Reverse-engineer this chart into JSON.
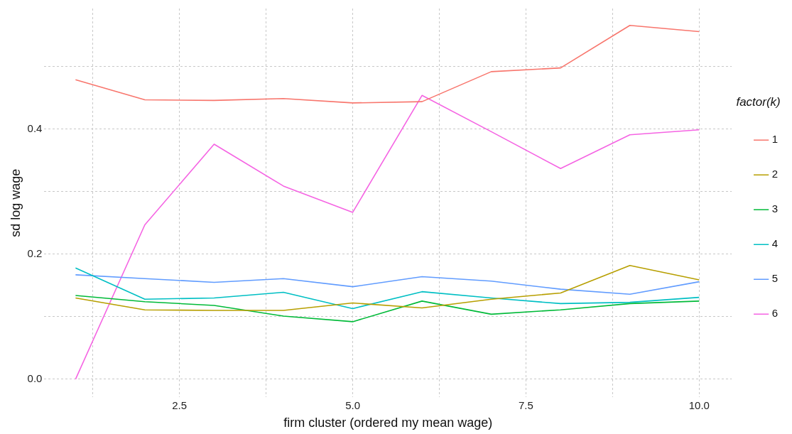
{
  "chart_data": {
    "type": "line",
    "xlabel": "firm cluster (ordered my mean wage)",
    "ylabel": "sd log wage",
    "legend_title": "factor(k)",
    "x": [
      1,
      2,
      3,
      4,
      5,
      6,
      7,
      8,
      9,
      10
    ],
    "series": [
      {
        "name": "1",
        "color": "#f8766d",
        "values": [
          0.479,
          0.447,
          0.446,
          0.449,
          0.442,
          0.444,
          0.492,
          0.498,
          0.566,
          0.556
        ]
      },
      {
        "name": "2",
        "color": "#b79f00",
        "values": [
          0.13,
          0.111,
          0.11,
          0.11,
          0.122,
          0.114,
          0.128,
          0.138,
          0.182,
          0.159
        ]
      },
      {
        "name": "3",
        "color": "#00ba38",
        "values": [
          0.134,
          0.124,
          0.118,
          0.101,
          0.092,
          0.125,
          0.104,
          0.111,
          0.121,
          0.125
        ]
      },
      {
        "name": "4",
        "color": "#00bfc4",
        "values": [
          0.178,
          0.128,
          0.13,
          0.139,
          0.113,
          0.14,
          0.13,
          0.121,
          0.123,
          0.131
        ]
      },
      {
        "name": "5",
        "color": "#619cff",
        "values": [
          0.167,
          0.161,
          0.155,
          0.161,
          0.148,
          0.164,
          0.157,
          0.144,
          0.136,
          0.156
        ]
      },
      {
        "name": "6",
        "color": "#f564e3",
        "values": [
          0.0,
          0.247,
          0.376,
          0.309,
          0.267,
          0.454,
          0.396,
          0.337,
          0.391,
          0.399
        ]
      }
    ],
    "xlim": [
      0.55,
      10.47
    ],
    "ylim": [
      -0.029,
      0.593
    ],
    "xticks": [
      {
        "value": 1.25,
        "label": null
      },
      {
        "value": 2.5,
        "label": "2.5"
      },
      {
        "value": 3.75,
        "label": null
      },
      {
        "value": 5,
        "label": "5.0"
      },
      {
        "value": 6.25,
        "label": null
      },
      {
        "value": 7.5,
        "label": "7.5"
      },
      {
        "value": 8.75,
        "label": null
      },
      {
        "value": 10,
        "label": "10.0"
      }
    ],
    "yticks": [
      {
        "value": 0,
        "label": "0.0"
      },
      {
        "value": 0.1,
        "label": null
      },
      {
        "value": 0.2,
        "label": "0.2"
      },
      {
        "value": 0.3,
        "label": null
      },
      {
        "value": 0.4,
        "label": "0.4"
      },
      {
        "value": 0.5,
        "label": null
      }
    ],
    "grid": true,
    "legend": "right",
    "marker": "none",
    "line_style": "solid"
  }
}
